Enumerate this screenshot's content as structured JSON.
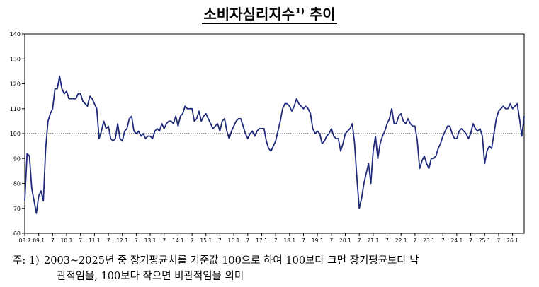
{
  "title": {
    "main": "소비자심리지수",
    "sup": "1)",
    "suffix": "추이"
  },
  "chart_data": {
    "type": "line",
    "title": "소비자심리지수 추이",
    "ylim": [
      60,
      140
    ],
    "yticks": [
      60,
      70,
      80,
      90,
      100,
      110,
      120,
      130,
      140
    ],
    "reference_line": 100,
    "grid": false,
    "x_tick_labels": [
      "08.7",
      "09.1",
      "7",
      "10.1",
      "7",
      "11.1",
      "7",
      "12.1",
      "7",
      "13.1",
      "7",
      "14.1",
      "7",
      "15.1",
      "7",
      "16.1",
      "7",
      "17.1",
      "7",
      "18.1",
      "7",
      "19.1",
      "7",
      "20.1",
      "7",
      "21.1",
      "7",
      "22.1",
      "7",
      "23.1",
      "7",
      "24.1",
      "7",
      "25.1",
      "7",
      "26.1"
    ],
    "series": [
      {
        "name": "",
        "color": "#1f2a7a",
        "values": [
          73,
          92,
          91,
          78,
          73,
          68,
          75,
          77,
          73,
          94,
          105,
          108,
          110,
          118,
          118,
          123,
          118,
          116,
          117,
          114,
          114,
          114,
          114,
          116,
          116,
          113,
          112,
          111,
          115,
          114,
          112,
          110,
          98,
          101,
          105,
          102,
          103,
          98,
          97,
          98,
          104,
          98,
          97,
          101,
          102,
          106,
          107,
          101,
          100,
          101,
          99,
          100,
          98,
          99,
          99,
          98,
          101,
          102,
          101,
          104,
          102,
          104,
          105,
          105,
          104,
          107,
          103,
          107,
          108,
          111,
          110,
          110,
          110,
          105,
          106,
          109,
          105,
          107,
          108,
          106,
          104,
          102,
          103,
          104,
          101,
          105,
          106,
          101,
          98,
          101,
          103,
          105,
          106,
          106,
          103,
          100,
          98,
          100,
          101,
          99,
          101,
          102,
          102,
          102,
          97,
          94,
          93,
          95,
          97,
          101,
          105,
          110,
          112,
          112,
          111,
          109,
          111,
          114,
          112,
          111,
          110,
          111,
          110,
          108,
          102,
          100,
          101,
          100,
          96,
          97,
          99,
          100,
          102,
          99,
          98,
          98,
          93,
          96,
          100,
          101,
          102,
          104,
          96,
          82,
          70,
          74,
          80,
          84,
          88,
          80,
          93,
          99,
          90,
          96,
          99,
          101,
          104,
          106,
          110,
          104,
          104,
          107,
          108,
          105,
          104,
          106,
          104,
          103,
          103,
          97,
          86,
          89,
          91,
          88,
          86,
          90,
          90,
          91,
          94,
          96,
          99,
          101,
          103,
          103,
          100,
          98,
          98,
          101,
          102,
          101,
          100,
          98,
          100,
          104,
          102,
          101,
          102,
          99,
          88,
          93,
          95,
          94,
          100,
          106,
          109,
          110,
          111,
          110,
          110,
          112,
          110,
          111,
          112,
          106,
          99,
          107
        ]
      }
    ]
  },
  "note": {
    "label": "주: 1)",
    "line1": "2003~2025년 중 장기평균치를 기준값 100으로 하여 100보다 크면 장기평균보다 낙",
    "line2": "관적임을, 100보다 작으면 비관적임을 의미"
  }
}
